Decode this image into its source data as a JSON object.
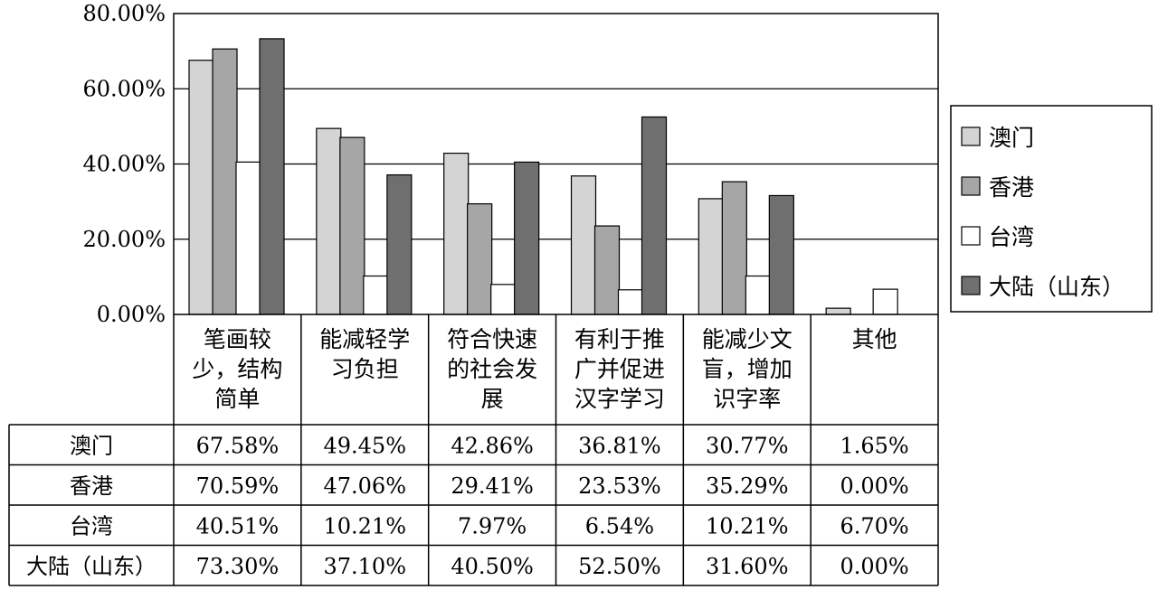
{
  "chart_data": {
    "type": "bar",
    "title": "",
    "xlabel": "",
    "ylabel": "",
    "ylim": [
      0,
      80
    ],
    "y_ticks": [
      "0.00%",
      "20.00%",
      "40.00%",
      "60.00%",
      "80.00%"
    ],
    "grid": true,
    "legend_position": "right",
    "categories": [
      [
        "笔画较",
        "少，结构",
        "简单"
      ],
      [
        "能减轻学",
        "习负担"
      ],
      [
        "符合快速",
        "的社会发",
        "展"
      ],
      [
        "有利于推",
        "广并促进",
        "汉字学习"
      ],
      [
        "能减少文",
        "盲，增加",
        "识字率"
      ],
      [
        "其他"
      ]
    ],
    "series": [
      {
        "name": "澳门",
        "color": "#d4d4d4",
        "values": [
          67.58,
          49.45,
          42.86,
          36.81,
          30.77,
          1.65
        ],
        "labels": [
          "67.58%",
          "49.45%",
          "42.86%",
          "36.81%",
          "30.77%",
          "1.65%"
        ]
      },
      {
        "name": "香港",
        "color": "#a6a6a6",
        "values": [
          70.59,
          47.06,
          29.41,
          23.53,
          35.29,
          0.0
        ],
        "labels": [
          "70.59%",
          "47.06%",
          "29.41%",
          "23.53%",
          "35.29%",
          "0.00%"
        ]
      },
      {
        "name": "台湾",
        "color": "#ffffff",
        "values": [
          40.51,
          10.21,
          7.97,
          6.54,
          10.21,
          6.7
        ],
        "labels": [
          "40.51%",
          "10.21%",
          "7.97%",
          "6.54%",
          "10.21%",
          "6.70%"
        ]
      },
      {
        "name": "大陆（山东）",
        "color": "#6f6f6f",
        "values": [
          73.3,
          37.1,
          40.5,
          52.5,
          31.6,
          0.0
        ],
        "labels": [
          "73.30%",
          "37.10%",
          "40.50%",
          "52.50%",
          "31.60%",
          "0.00%"
        ]
      }
    ]
  }
}
